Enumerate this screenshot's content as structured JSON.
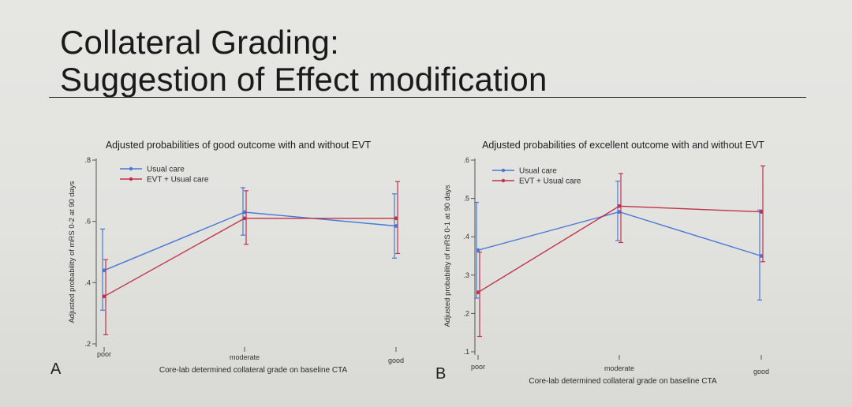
{
  "slide": {
    "title_line1": "Collateral Grading:",
    "title_line2": "Suggestion of Effect modification"
  },
  "colors": {
    "usual": "#4a78d6",
    "evt": "#c0324a",
    "axis": "#555555"
  },
  "chart_data": [
    {
      "type": "line",
      "panel": "A",
      "title": "Adjusted probabilities of good outcome with and without EVT",
      "xlabel": "Core-lab determined collateral grade on baseline CTA",
      "ylabel": "Adjusted probability of mRS 0-2 at 90 days",
      "categories": [
        "poor",
        "moderate",
        "good"
      ],
      "ylim": [
        0.2,
        0.8
      ],
      "yticks": [
        0.2,
        0.4,
        0.6,
        0.8
      ],
      "ytick_labels": [
        ".2",
        ".4",
        ".6",
        ".8"
      ],
      "legend_position": "top-left",
      "series": [
        {
          "name": "Usual care",
          "color_key": "usual",
          "values": [
            0.44,
            0.63,
            0.585
          ],
          "lower": [
            0.31,
            0.555,
            0.48
          ],
          "upper": [
            0.575,
            0.71,
            0.69
          ]
        },
        {
          "name": "EVT + Usual care",
          "color_key": "evt",
          "values": [
            0.355,
            0.61,
            0.61
          ],
          "lower": [
            0.23,
            0.525,
            0.495
          ],
          "upper": [
            0.475,
            0.7,
            0.73
          ]
        }
      ]
    },
    {
      "type": "line",
      "panel": "B",
      "title": "Adjusted probabilities of excellent outcome with and without EVT",
      "xlabel": "Core-lab determined collateral grade on baseline CTA",
      "ylabel": "Adjusted probability of mRS 0-1 at 90 days",
      "categories": [
        "poor",
        "moderate",
        "good"
      ],
      "ylim": [
        0.1,
        0.6
      ],
      "yticks": [
        0.1,
        0.2,
        0.3,
        0.4,
        0.5,
        0.6
      ],
      "ytick_labels": [
        ".1",
        ".2",
        ".3",
        ".4",
        ".5",
        ".6"
      ],
      "legend_position": "top-left",
      "series": [
        {
          "name": "Usual care",
          "color_key": "usual",
          "values": [
            0.365,
            0.465,
            0.35
          ],
          "lower": [
            0.24,
            0.39,
            0.235
          ],
          "upper": [
            0.49,
            0.545,
            0.47
          ]
        },
        {
          "name": "EVT + Usual care",
          "color_key": "evt",
          "values": [
            0.255,
            0.48,
            0.465
          ],
          "lower": [
            0.14,
            0.385,
            0.335
          ],
          "upper": [
            0.36,
            0.565,
            0.585
          ]
        }
      ]
    }
  ]
}
